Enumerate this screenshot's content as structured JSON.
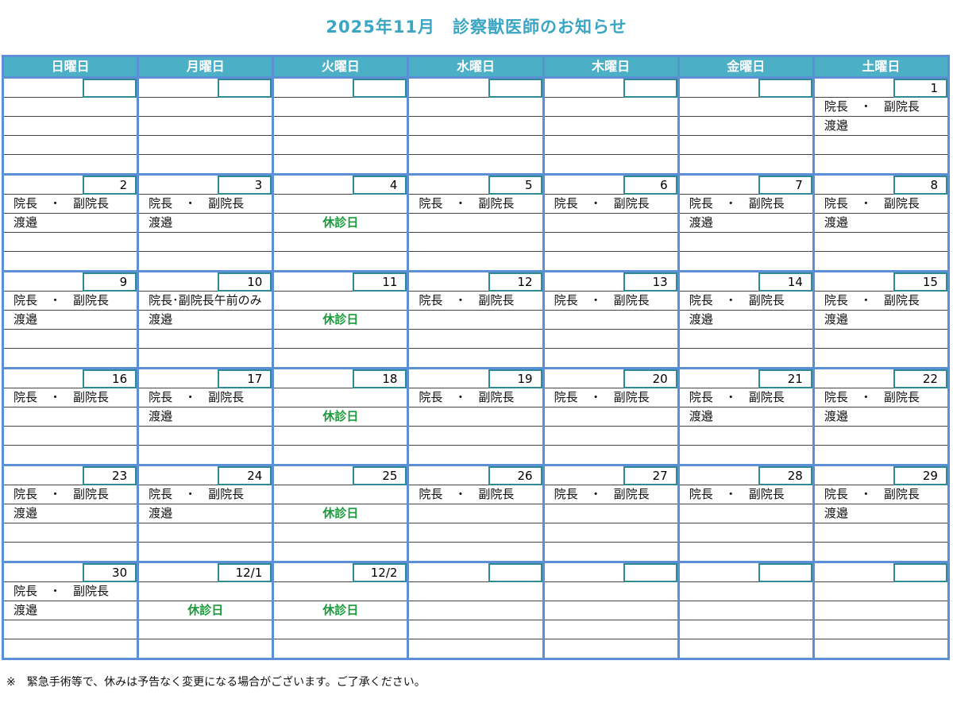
{
  "title": "2025年11月　診察獣医師のお知らせ",
  "weekdays": [
    "日曜日",
    "月曜日",
    "火曜日",
    "水曜日",
    "木曜日",
    "金曜日",
    "土曜日"
  ],
  "weeks": [
    [
      {
        "date": "",
        "l1": "",
        "l2": ""
      },
      {
        "date": "",
        "l1": "",
        "l2": ""
      },
      {
        "date": "",
        "l1": "",
        "l2": ""
      },
      {
        "date": "",
        "l1": "",
        "l2": ""
      },
      {
        "date": "",
        "l1": "",
        "l2": ""
      },
      {
        "date": "",
        "l1": "",
        "l2": ""
      },
      {
        "date": "1",
        "l1": "院長　・　副院長",
        "l2": "渡邉"
      }
    ],
    [
      {
        "date": "2",
        "l1": "院長　・　副院長",
        "l2": "渡邉"
      },
      {
        "date": "3",
        "l1": "院長　・　副院長",
        "l2": "渡邉"
      },
      {
        "date": "4",
        "l1": "",
        "l2": "休診日",
        "holiday": true
      },
      {
        "date": "5",
        "l1": "院長　・　副院長",
        "l2": ""
      },
      {
        "date": "6",
        "l1": "院長　・　副院長",
        "l2": ""
      },
      {
        "date": "7",
        "l1": "院長　・　副院長",
        "l2": "渡邉"
      },
      {
        "date": "8",
        "l1": "院長　・　副院長",
        "l2": "渡邉"
      }
    ],
    [
      {
        "date": "9",
        "l1": "院長　・　副院長",
        "l2": "渡邉"
      },
      {
        "date": "10",
        "l1": "院長･副院長午前のみ",
        "l2": "渡邉"
      },
      {
        "date": "11",
        "l1": "",
        "l2": "休診日",
        "holiday": true
      },
      {
        "date": "12",
        "l1": "院長　・　副院長",
        "l2": ""
      },
      {
        "date": "13",
        "l1": "院長　・　副院長",
        "l2": ""
      },
      {
        "date": "14",
        "l1": "院長　・　副院長",
        "l2": "渡邉"
      },
      {
        "date": "15",
        "l1": "院長　・　副院長",
        "l2": "渡邉"
      }
    ],
    [
      {
        "date": "16",
        "l1": "院長　・　副院長",
        "l2": ""
      },
      {
        "date": "17",
        "l1": "院長　・　副院長",
        "l2": "渡邉"
      },
      {
        "date": "18",
        "l1": "",
        "l2": "休診日",
        "holiday": true
      },
      {
        "date": "19",
        "l1": "院長　・　副院長",
        "l2": ""
      },
      {
        "date": "20",
        "l1": "院長　・　副院長",
        "l2": ""
      },
      {
        "date": "21",
        "l1": "院長　・　副院長",
        "l2": "渡邉"
      },
      {
        "date": "22",
        "l1": "院長　・　副院長",
        "l2": "渡邉"
      }
    ],
    [
      {
        "date": "23",
        "l1": "院長　・　副院長",
        "l2": "渡邉"
      },
      {
        "date": "24",
        "l1": "院長　・　副院長",
        "l2": "渡邉"
      },
      {
        "date": "25",
        "l1": "",
        "l2": "休診日",
        "holiday": true
      },
      {
        "date": "26",
        "l1": "院長　・　副院長",
        "l2": ""
      },
      {
        "date": "27",
        "l1": "院長　・　副院長",
        "l2": ""
      },
      {
        "date": "28",
        "l1": "院長　・　副院長",
        "l2": ""
      },
      {
        "date": "29",
        "l1": "院長　・　副院長",
        "l2": "渡邉"
      }
    ],
    [
      {
        "date": "30",
        "l1": "院長　・　副院長",
        "l2": "渡邉"
      },
      {
        "date": "12/1",
        "l1": "",
        "l2": "休診日",
        "holiday": true
      },
      {
        "date": "12/2",
        "l1": "",
        "l2": "休診日",
        "holiday": true
      },
      {
        "date": "",
        "l1": "",
        "l2": ""
      },
      {
        "date": "",
        "l1": "",
        "l2": ""
      },
      {
        "date": "",
        "l1": "",
        "l2": ""
      },
      {
        "date": "",
        "l1": "",
        "l2": ""
      }
    ]
  ],
  "note": "※　緊急手術等で、休みは予告なく変更になる場合がございます。ご了承ください。",
  "colors": {
    "title": "#3aa6c4",
    "header": "#4bb0c6",
    "border": "#5b8fd6",
    "holiday": "#1a9a3a"
  }
}
